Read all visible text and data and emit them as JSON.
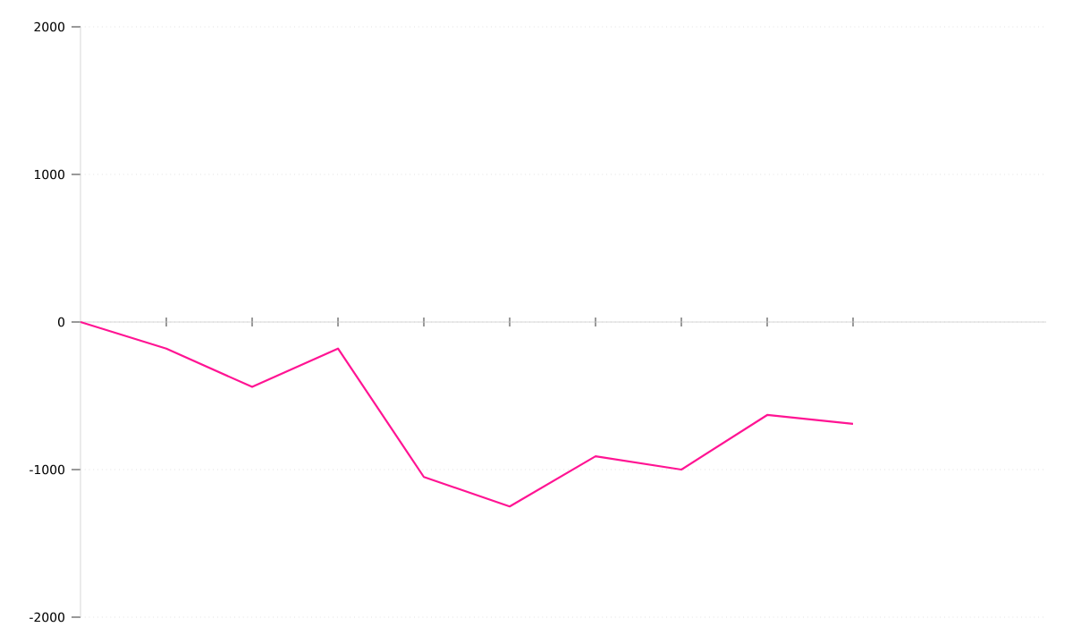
{
  "chart_data": {
    "type": "line",
    "categories": [
      null,
      null,
      null,
      null,
      null,
      null,
      null,
      null,
      null,
      null
    ],
    "series": [
      {
        "color": "#ff1493",
        "values": [
          0,
          -180,
          -440,
          -180,
          -1050,
          -1250,
          -910,
          -1000,
          -630,
          -690
        ]
      }
    ],
    "ylim": [
      -2000,
      2000
    ],
    "yticks": [
      -2000,
      -1000,
      0,
      1000,
      2000
    ],
    "grid": "y",
    "tick_labels": "y"
  }
}
